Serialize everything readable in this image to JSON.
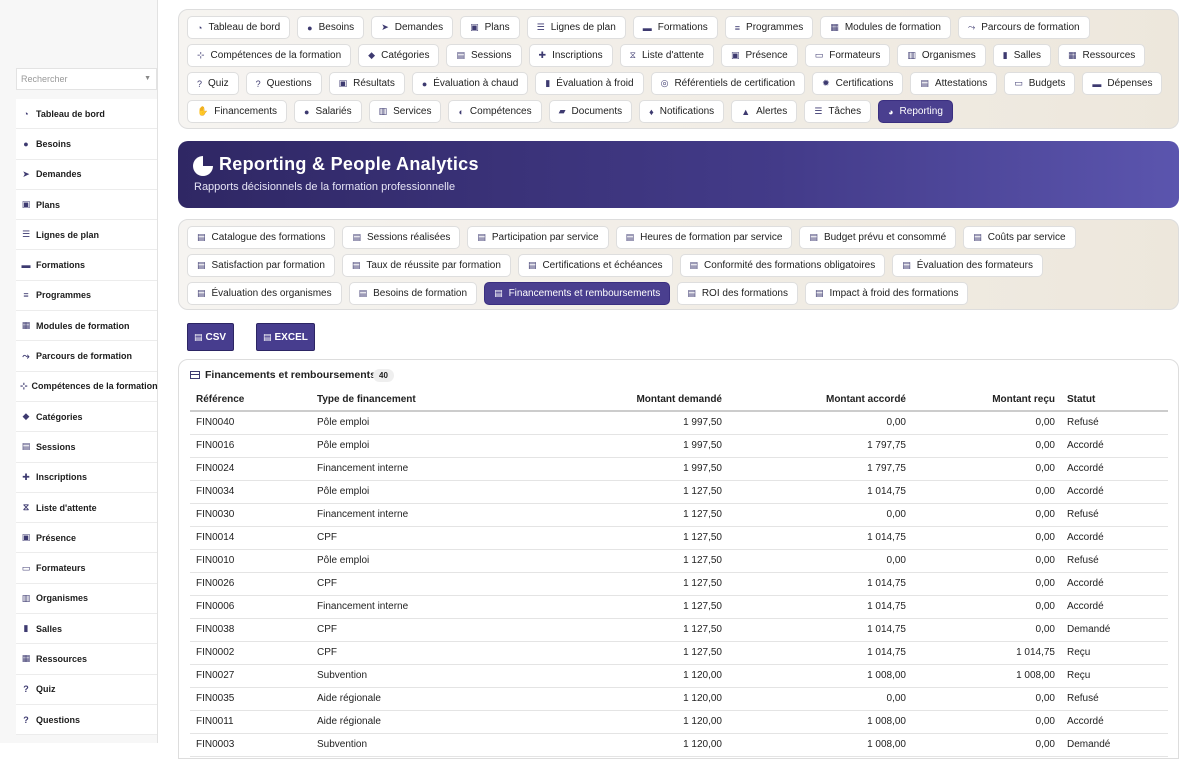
{
  "sidebar": {
    "search_placeholder": "Rechercher",
    "items": [
      {
        "label": "Tableau de bord",
        "icon": "gauge-icon"
      },
      {
        "label": "Besoins",
        "icon": "lightbulb-icon"
      },
      {
        "label": "Demandes",
        "icon": "send-icon"
      },
      {
        "label": "Plans",
        "icon": "clipboard-icon"
      },
      {
        "label": "Lignes de plan",
        "icon": "list-icon"
      },
      {
        "label": "Formations",
        "icon": "graduation-cap-icon"
      },
      {
        "label": "Programmes",
        "icon": "bars-icon"
      },
      {
        "label": "Modules de formation",
        "icon": "cubes-icon"
      },
      {
        "label": "Parcours de formation",
        "icon": "route-icon"
      },
      {
        "label": "Compétences de la formation",
        "icon": "sitemap-icon"
      },
      {
        "label": "Catégories",
        "icon": "tags-icon"
      },
      {
        "label": "Sessions",
        "icon": "calendar-icon"
      },
      {
        "label": "Inscriptions",
        "icon": "user-plus-icon"
      },
      {
        "label": "Liste d'attente",
        "icon": "hourglass-icon"
      },
      {
        "label": "Présence",
        "icon": "clipboard-check-icon"
      },
      {
        "label": "Formateurs",
        "icon": "chalkboard-icon"
      },
      {
        "label": "Organismes",
        "icon": "building-icon"
      },
      {
        "label": "Salles",
        "icon": "door-icon"
      },
      {
        "label": "Ressources",
        "icon": "boxes-icon"
      },
      {
        "label": "Quiz",
        "icon": "question-circle-icon"
      },
      {
        "label": "Questions",
        "icon": "question-icon"
      }
    ]
  },
  "modules": [
    {
      "label": "Tableau de bord",
      "glyph": "◔"
    },
    {
      "label": "Besoins",
      "glyph": "●"
    },
    {
      "label": "Demandes",
      "glyph": "➤"
    },
    {
      "label": "Plans",
      "glyph": "▣"
    },
    {
      "label": "Lignes de plan",
      "glyph": "☰"
    },
    {
      "label": "Formations",
      "glyph": "▬"
    },
    {
      "label": "Programmes",
      "glyph": "≡"
    },
    {
      "label": "Modules de formation",
      "glyph": "▦"
    },
    {
      "label": "Parcours de formation",
      "glyph": "⤳"
    },
    {
      "label": "Compétences de la formation",
      "glyph": "⊹"
    },
    {
      "label": "Catégories",
      "glyph": "◆"
    },
    {
      "label": "Sessions",
      "glyph": "▤"
    },
    {
      "label": "Inscriptions",
      "glyph": "✚"
    },
    {
      "label": "Liste d'attente",
      "glyph": "⧖"
    },
    {
      "label": "Présence",
      "glyph": "▣"
    },
    {
      "label": "Formateurs",
      "glyph": "▭"
    },
    {
      "label": "Organismes",
      "glyph": "▥"
    },
    {
      "label": "Salles",
      "glyph": "▮"
    },
    {
      "label": "Ressources",
      "glyph": "▦"
    },
    {
      "label": "Quiz",
      "glyph": "?"
    },
    {
      "label": "Questions",
      "glyph": "?"
    },
    {
      "label": "Résultats",
      "glyph": "▣"
    },
    {
      "label": "Évaluation à chaud",
      "glyph": "●"
    },
    {
      "label": "Évaluation à froid",
      "glyph": "▮"
    },
    {
      "label": "Référentiels de certification",
      "glyph": "◎"
    },
    {
      "label": "Certifications",
      "glyph": "✹"
    },
    {
      "label": "Attestations",
      "glyph": "▤"
    },
    {
      "label": "Budgets",
      "glyph": "▭"
    },
    {
      "label": "Dépenses",
      "glyph": "▬"
    },
    {
      "label": "Financements",
      "glyph": "✋"
    },
    {
      "label": "Salariés",
      "glyph": "●"
    },
    {
      "label": "Services",
      "glyph": "▥"
    },
    {
      "label": "Compétences",
      "glyph": "◐"
    },
    {
      "label": "Documents",
      "glyph": "▰"
    },
    {
      "label": "Notifications",
      "glyph": "♦"
    },
    {
      "label": "Alertes",
      "glyph": "▲"
    },
    {
      "label": "Tâches",
      "glyph": "☰"
    },
    {
      "label": "Reporting",
      "glyph": "◕",
      "active": true
    }
  ],
  "banner": {
    "title": "Reporting & People Analytics",
    "subtitle": "Rapports décisionnels de la formation professionnelle"
  },
  "reports": [
    {
      "label": "Catalogue des formations"
    },
    {
      "label": "Sessions réalisées"
    },
    {
      "label": "Participation par service"
    },
    {
      "label": "Heures de formation par service"
    },
    {
      "label": "Budget prévu et consommé"
    },
    {
      "label": "Coûts par service"
    },
    {
      "label": "Satisfaction par formation"
    },
    {
      "label": "Taux de réussite par formation"
    },
    {
      "label": "Certifications et échéances"
    },
    {
      "label": "Conformité des formations obligatoires"
    },
    {
      "label": "Évaluation des formateurs"
    },
    {
      "label": "Évaluation des organismes"
    },
    {
      "label": "Besoins de formation"
    },
    {
      "label": "Financements et remboursements",
      "active": true
    },
    {
      "label": "ROI des formations"
    },
    {
      "label": "Impact à froid des formations"
    }
  ],
  "export": {
    "csv_label": "CSV",
    "excel_label": "EXCEL"
  },
  "table": {
    "title": "Financements et remboursements",
    "count": "40",
    "headers": [
      "Référence",
      "Type de financement",
      "Montant demandé",
      "Montant accordé",
      "Montant reçu",
      "Statut"
    ],
    "rows": [
      [
        "FIN0040",
        "Pôle emploi",
        "1 997,50",
        "0,00",
        "0,00",
        "Refusé"
      ],
      [
        "FIN0016",
        "Pôle emploi",
        "1 997,50",
        "1 797,75",
        "0,00",
        "Accordé"
      ],
      [
        "FIN0024",
        "Financement interne",
        "1 997,50",
        "1 797,75",
        "0,00",
        "Accordé"
      ],
      [
        "FIN0034",
        "Pôle emploi",
        "1 127,50",
        "1 014,75",
        "0,00",
        "Accordé"
      ],
      [
        "FIN0030",
        "Financement interne",
        "1 127,50",
        "0,00",
        "0,00",
        "Refusé"
      ],
      [
        "FIN0014",
        "CPF",
        "1 127,50",
        "1 014,75",
        "0,00",
        "Accordé"
      ],
      [
        "FIN0010",
        "Pôle emploi",
        "1 127,50",
        "0,00",
        "0,00",
        "Refusé"
      ],
      [
        "FIN0026",
        "CPF",
        "1 127,50",
        "1 014,75",
        "0,00",
        "Accordé"
      ],
      [
        "FIN0006",
        "Financement interne",
        "1 127,50",
        "1 014,75",
        "0,00",
        "Accordé"
      ],
      [
        "FIN0038",
        "CPF",
        "1 127,50",
        "1 014,75",
        "0,00",
        "Demandé"
      ],
      [
        "FIN0002",
        "CPF",
        "1 127,50",
        "1 014,75",
        "1 014,75",
        "Reçu"
      ],
      [
        "FIN0027",
        "Subvention",
        "1 120,00",
        "1 008,00",
        "1 008,00",
        "Reçu"
      ],
      [
        "FIN0035",
        "Aide régionale",
        "1 120,00",
        "0,00",
        "0,00",
        "Refusé"
      ],
      [
        "FIN0011",
        "Aide régionale",
        "1 120,00",
        "1 008,00",
        "0,00",
        "Accordé"
      ],
      [
        "FIN0003",
        "Subvention",
        "1 120,00",
        "1 008,00",
        "0,00",
        "Demandé"
      ]
    ]
  }
}
